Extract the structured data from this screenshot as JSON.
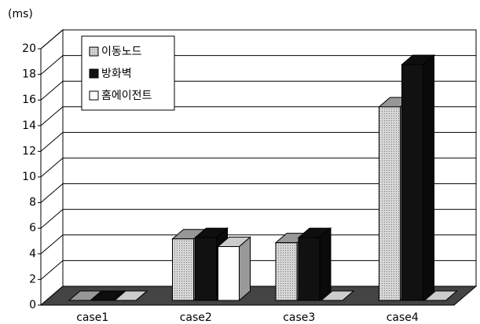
{
  "chart_data": {
    "type": "bar3d",
    "y_label": "(ms)",
    "categories": [
      "case1",
      "case2",
      "case3",
      "case4"
    ],
    "series": [
      {
        "name": "이동노드",
        "color": "#bdbdbd",
        "values": [
          0,
          4.8,
          4.5,
          15.1
        ]
      },
      {
        "name": "방화벽",
        "color": "#111111",
        "values": [
          0,
          4.9,
          4.9,
          18.4
        ]
      },
      {
        "name": "홈에이전트",
        "color": "#ffffff",
        "values": [
          0,
          4.2,
          0,
          0
        ]
      }
    ],
    "ylim": [
      0,
      20
    ],
    "yticks": [
      0,
      2,
      4,
      6,
      8,
      10,
      12,
      14,
      16,
      18,
      20
    ],
    "grid": true,
    "legend": "top-left"
  }
}
